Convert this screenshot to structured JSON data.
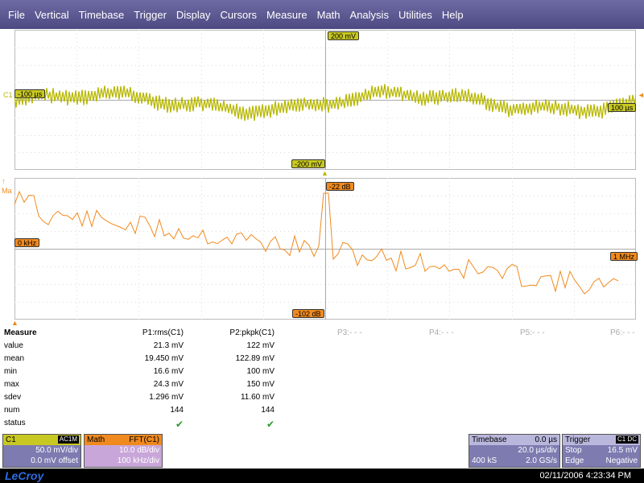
{
  "menu": [
    "File",
    "Vertical",
    "Timebase",
    "Trigger",
    "Display",
    "Cursors",
    "Measure",
    "Math",
    "Analysis",
    "Utilities",
    "Help"
  ],
  "ch1": {
    "marker": "C1",
    "top_scale": "200 mV",
    "bottom_scale": "-200 mV",
    "left_time": "-100 µs",
    "right_time": "100 µs",
    "color": "#b8b800"
  },
  "fft": {
    "marker": "Ma",
    "top_scale": "-22 dB",
    "bottom_scale": "-102 dB",
    "left_freq": "0 kHz",
    "right_freq": "1 MHz",
    "color": "#f08a1e"
  },
  "measure": {
    "title": "Measure",
    "p1_header": "P1:rms(C1)",
    "p2_header": "P2:pkpk(C1)",
    "p3": "P3:- - -",
    "p4": "P4:- - -",
    "p5": "P5:- - -",
    "p6": "P6:- - -",
    "rows": [
      {
        "label": "value",
        "p1": "21.3 mV",
        "p2": "122 mV"
      },
      {
        "label": "mean",
        "p1": "19.450 mV",
        "p2": "122.89 mV"
      },
      {
        "label": "min",
        "p1": "16.6 mV",
        "p2": "100 mV"
      },
      {
        "label": "max",
        "p1": "24.3 mV",
        "p2": "150 mV"
      },
      {
        "label": "sdev",
        "p1": "1.296 mV",
        "p2": "11.60 mV"
      },
      {
        "label": "num",
        "p1": "144",
        "p2": "144"
      }
    ],
    "status_label": "status"
  },
  "c1_desc": {
    "name": "C1",
    "coupling": "AC1M",
    "scale": "50.0 mV/div",
    "offset": "0.0 mV offset"
  },
  "math_desc": {
    "name": "Math",
    "func": "FFT(C1)",
    "scale": "10.0 dB/div",
    "freq": "100 kHz/div"
  },
  "timebase_desc": {
    "name": "Timebase",
    "delay": "0.0 µs",
    "per_div": "20.0 µs/div",
    "samples": "400 kS",
    "rate": "2.0 GS/s"
  },
  "trigger_desc": {
    "name": "Trigger",
    "badge": "C1 DC",
    "mode": "Stop",
    "level": "16.5 mV",
    "type": "Edge",
    "slope": "Negative"
  },
  "status": {
    "logo": "LeCroy",
    "datetime": "02/11/2006 4:23:34 PM"
  }
}
